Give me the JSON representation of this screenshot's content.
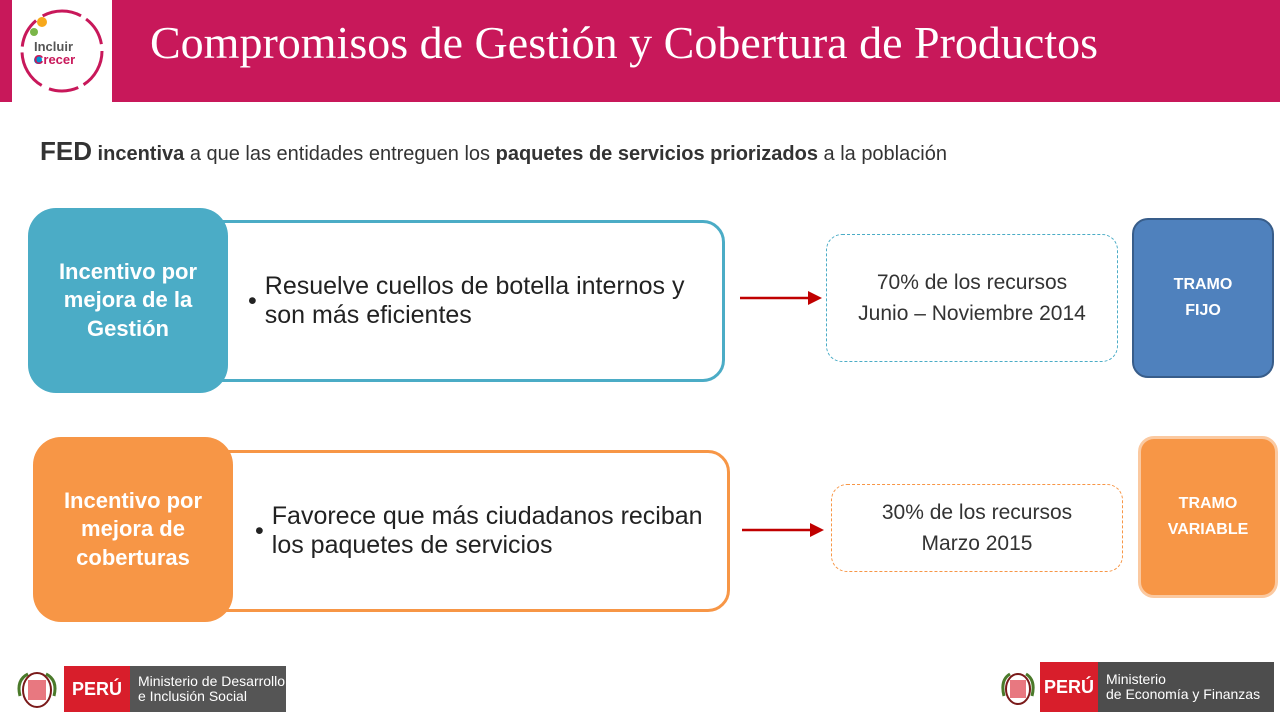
{
  "header": {
    "title": "Compromisos de Gestión y Cobertura de Productos",
    "logo_line1": "Incluir",
    "logo_line2": "Crecer"
  },
  "subtitle": {
    "p1": "FED",
    "p2": " incentiva",
    "p3": " a que las entidades entreguen los ",
    "p4": "paquetes de servicios priorizados",
    "p5": " a la población"
  },
  "rows": [
    {
      "label": "Incentivo por mejora de la Gestión",
      "bullet": "Resuelve cuellos de botella internos y son más eficientes",
      "pct_line1": "70% de los recursos",
      "pct_line2": "Junio – Noviembre 2014",
      "tramo_line1": "TRAMO",
      "tramo_line2": "FIJO"
    },
    {
      "label": "Incentivo por mejora de coberturas",
      "bullet": "Favorece que más ciudadanos reciban los paquetes de servicios",
      "pct_line1": "30% de los recursos",
      "pct_line2": "Marzo 2015",
      "tramo_line1": "TRAMO",
      "tramo_line2": "VARIABLE"
    }
  ],
  "footer": {
    "left_peru": "PERÚ",
    "left_ministry_l1": "Ministerio de Desarrollo",
    "left_ministry_l2": "e Inclusión Social",
    "right_peru": "PERÚ",
    "right_ministry_l1": "Ministerio",
    "right_ministry_l2": "de Economía y Finanzas"
  },
  "colors": {
    "header": "#c8185a",
    "blue": "#4bacc6",
    "orange": "#f79646",
    "tramo_fijo": "#4f81bd",
    "arrow": "#c00000"
  }
}
